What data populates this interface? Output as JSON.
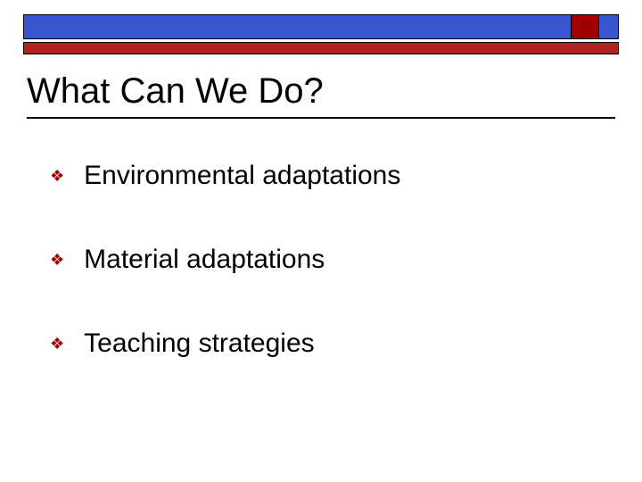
{
  "theme": {
    "blue_bar_color": "#3956ce",
    "red_bar_color": "#b22222",
    "accent_color": "#a00000",
    "background_color": "#ffffff",
    "text_color": "#000000",
    "bullet_color": "#a00000",
    "title_fontsize": 40,
    "bullet_fontsize": 30
  },
  "slide": {
    "title": "What Can We Do?",
    "bullets": [
      {
        "text": "Environmental adaptations"
      },
      {
        "text": "Material adaptations"
      },
      {
        "text": "Teaching strategies"
      }
    ]
  }
}
